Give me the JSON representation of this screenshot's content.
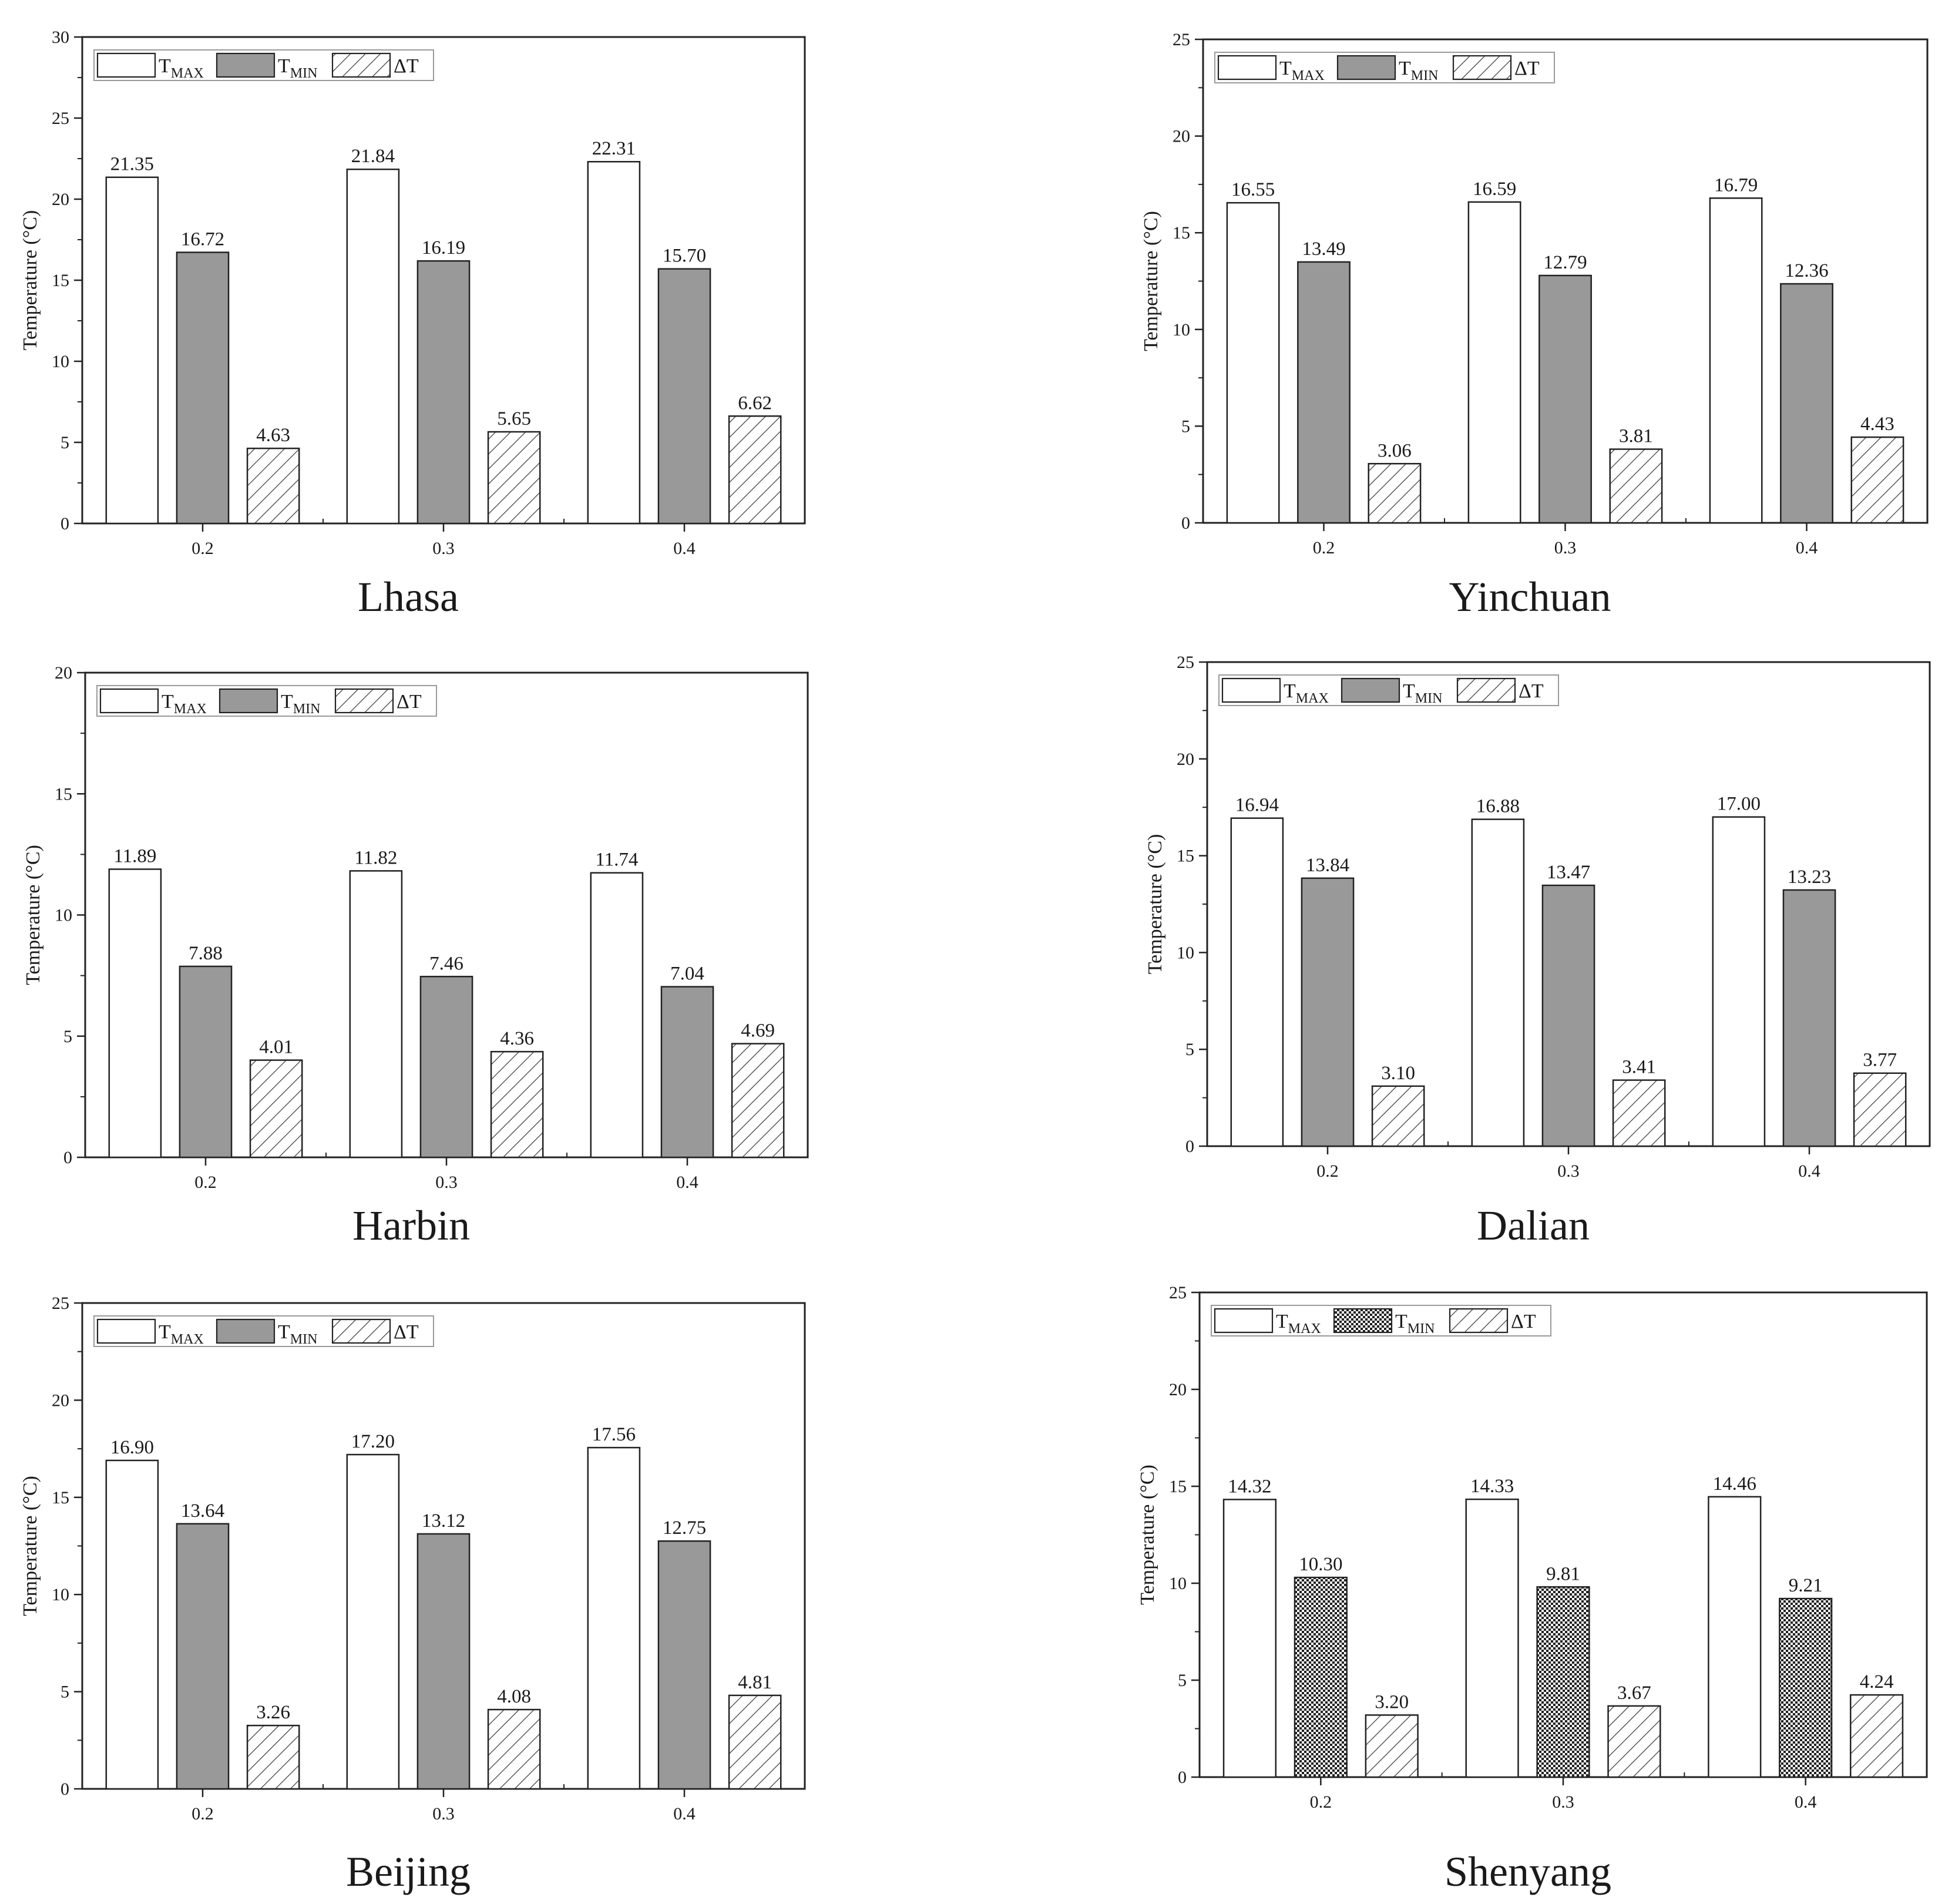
{
  "chart_data": [
    {
      "type": "bar",
      "caption": "Lhasa",
      "categories": [
        "0.2",
        "0.3",
        "0.4"
      ],
      "ylabel": "Temperature (°C)",
      "ylim": [
        0,
        30
      ],
      "yticks": [
        0,
        5,
        10,
        15,
        20,
        25,
        30
      ],
      "series": [
        {
          "key": "tmax",
          "name": "T",
          "sub": "MAX",
          "values": [
            21.35,
            21.84,
            22.31
          ],
          "labels": [
            "21.35",
            "21.84",
            "22.31"
          ]
        },
        {
          "key": "tmin",
          "name": "T",
          "sub": "MIN",
          "values": [
            16.72,
            16.19,
            15.7
          ],
          "labels": [
            "16.72",
            "16.19",
            "15.70"
          ]
        },
        {
          "key": "dt",
          "name": "ΔT",
          "sub": "",
          "values": [
            4.63,
            5.65,
            6.62
          ],
          "labels": [
            "4.63",
            "5.65",
            "6.62"
          ]
        }
      ]
    },
    {
      "type": "bar",
      "caption": "Yinchuan",
      "categories": [
        "0.2",
        "0.3",
        "0.4"
      ],
      "ylabel": "Temperature (°C)",
      "ylim": [
        0,
        25
      ],
      "yticks": [
        0,
        5,
        10,
        15,
        20,
        25
      ],
      "series": [
        {
          "key": "tmax",
          "name": "T",
          "sub": "MAX",
          "values": [
            16.55,
            16.59,
            16.79
          ],
          "labels": [
            "16.55",
            "16.59",
            "16.79"
          ]
        },
        {
          "key": "tmin",
          "name": "T",
          "sub": "MIN",
          "values": [
            13.49,
            12.79,
            12.36
          ],
          "labels": [
            "13.49",
            "12.79",
            "12.36"
          ]
        },
        {
          "key": "dt",
          "name": "ΔT",
          "sub": "",
          "values": [
            3.06,
            3.81,
            4.43
          ],
          "labels": [
            "3.06",
            "3.81",
            "4.43"
          ]
        }
      ]
    },
    {
      "type": "bar",
      "caption": "Harbin",
      "categories": [
        "0.2",
        "0.3",
        "0.4"
      ],
      "ylabel": "Temperature (°C)",
      "ylim": [
        0,
        20
      ],
      "yticks": [
        0,
        5,
        10,
        15,
        20
      ],
      "series": [
        {
          "key": "tmax",
          "name": "T",
          "sub": "MAX",
          "values": [
            11.89,
            11.82,
            11.74
          ],
          "labels": [
            "11.89",
            "11.82",
            "11.74"
          ]
        },
        {
          "key": "tmin",
          "name": "T",
          "sub": "MIN",
          "values": [
            7.88,
            7.46,
            7.04
          ],
          "labels": [
            "7.88",
            "7.46",
            "7.04"
          ]
        },
        {
          "key": "dt",
          "name": "ΔT",
          "sub": "",
          "values": [
            4.01,
            4.36,
            4.69
          ],
          "labels": [
            "4.01",
            "4.36",
            "4.69"
          ]
        }
      ]
    },
    {
      "type": "bar",
      "caption": "Dalian",
      "categories": [
        "0.2",
        "0.3",
        "0.4"
      ],
      "ylabel": "Temperature (°C)",
      "ylim": [
        0,
        25
      ],
      "yticks": [
        0,
        5,
        10,
        15,
        20,
        25
      ],
      "series": [
        {
          "key": "tmax",
          "name": "T",
          "sub": "MAX",
          "values": [
            16.94,
            16.88,
            17.0
          ],
          "labels": [
            "16.94",
            "16.88",
            "17.00"
          ]
        },
        {
          "key": "tmin",
          "name": "T",
          "sub": "MIN",
          "values": [
            13.84,
            13.47,
            13.23
          ],
          "labels": [
            "13.84",
            "13.47",
            "13.23"
          ]
        },
        {
          "key": "dt",
          "name": "ΔT",
          "sub": "",
          "values": [
            3.1,
            3.41,
            3.77
          ],
          "labels": [
            "3.10",
            "3.41",
            "3.77"
          ]
        }
      ]
    },
    {
      "type": "bar",
      "caption": "Beijing",
      "categories": [
        "0.2",
        "0.3",
        "0.4"
      ],
      "ylabel": "Temperature (°C)",
      "ylim": [
        0,
        25
      ],
      "yticks": [
        0,
        5,
        10,
        15,
        20,
        25
      ],
      "series": [
        {
          "key": "tmax",
          "name": "T",
          "sub": "MAX",
          "values": [
            16.9,
            17.2,
            17.56
          ],
          "labels": [
            "16.90",
            "17.20",
            "17.56"
          ]
        },
        {
          "key": "tmin",
          "name": "T",
          "sub": "MIN",
          "values": [
            13.64,
            13.12,
            12.75
          ],
          "labels": [
            "13.64",
            "13.12",
            "12.75"
          ]
        },
        {
          "key": "dt",
          "name": "ΔT",
          "sub": "",
          "values": [
            3.26,
            4.08,
            4.81
          ],
          "labels": [
            "3.26",
            "4.08",
            "4.81"
          ]
        }
      ]
    },
    {
      "type": "bar",
      "caption": "Shenyang",
      "categories": [
        "0.2",
        "0.3",
        "0.4"
      ],
      "ylabel": "Temperature (°C)",
      "ylim": [
        0,
        25
      ],
      "yticks": [
        0,
        5,
        10,
        15,
        20,
        25
      ],
      "tmin_fill": "dots",
      "series": [
        {
          "key": "tmax",
          "name": "T",
          "sub": "MAX",
          "values": [
            14.32,
            14.33,
            14.46
          ],
          "labels": [
            "14.32",
            "14.33",
            "14.46"
          ]
        },
        {
          "key": "tmin",
          "name": "T",
          "sub": "MIN",
          "values": [
            10.3,
            9.81,
            9.21
          ],
          "labels": [
            "10.30",
            "9.81",
            "9.21"
          ]
        },
        {
          "key": "dt",
          "name": "ΔT",
          "sub": "",
          "values": [
            3.2,
            3.67,
            4.24
          ],
          "labels": [
            "3.20",
            "3.67",
            "4.24"
          ]
        }
      ]
    }
  ],
  "colors": {
    "tmax_fill": "#ffffff",
    "tmin_fill": "#999999",
    "stroke": "#222222",
    "text": "#1a1a1a"
  }
}
